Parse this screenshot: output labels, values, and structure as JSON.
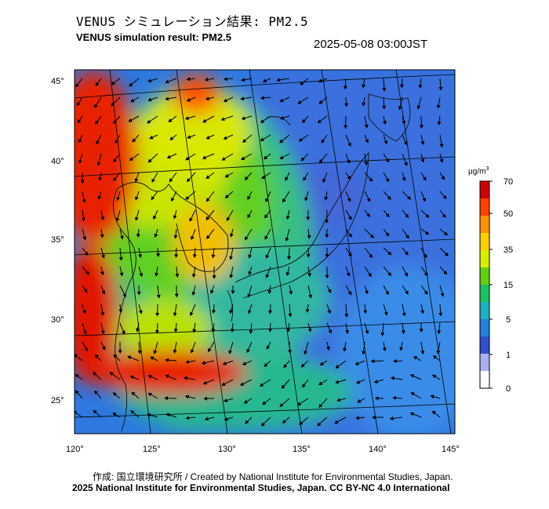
{
  "header": {
    "title_jp": "VENUS シミュレーション結果: PM2.5",
    "title_en": "VENUS simulation result: PM2.5",
    "timestamp": "2025-05-08 03:00JST"
  },
  "map": {
    "lat_labels": [
      "45°",
      "40°",
      "35°",
      "30°",
      "25°"
    ],
    "lon_labels": [
      "120°",
      "125°",
      "130°",
      "135°",
      "140°",
      "145°"
    ],
    "lat_range": [
      23,
      46
    ],
    "lon_range": [
      120,
      145
    ],
    "field": "PM2.5 concentration",
    "vectors": "wind arrows"
  },
  "colorbar": {
    "unit": "μg/m",
    "unit_sup": "3",
    "ticks": [
      "70",
      "50",
      "35",
      "15",
      "5",
      "1",
      "0"
    ],
    "colors": [
      "#d00000",
      "#ff4000",
      "#ff9000",
      "#ffd000",
      "#d8ee00",
      "#60d010",
      "#20c060",
      "#20b0c0",
      "#2080e0",
      "#3050d0",
      "#a8b0f0",
      "#ffffff"
    ]
  },
  "footer": {
    "credit_jp": "作成: 国立環境研究所 / Created by National Institute for Environmental Studies, Japan.",
    "credit_en": "2025 National Institute for Environmental Studies, Japan. CC BY-NC 4.0 International"
  }
}
